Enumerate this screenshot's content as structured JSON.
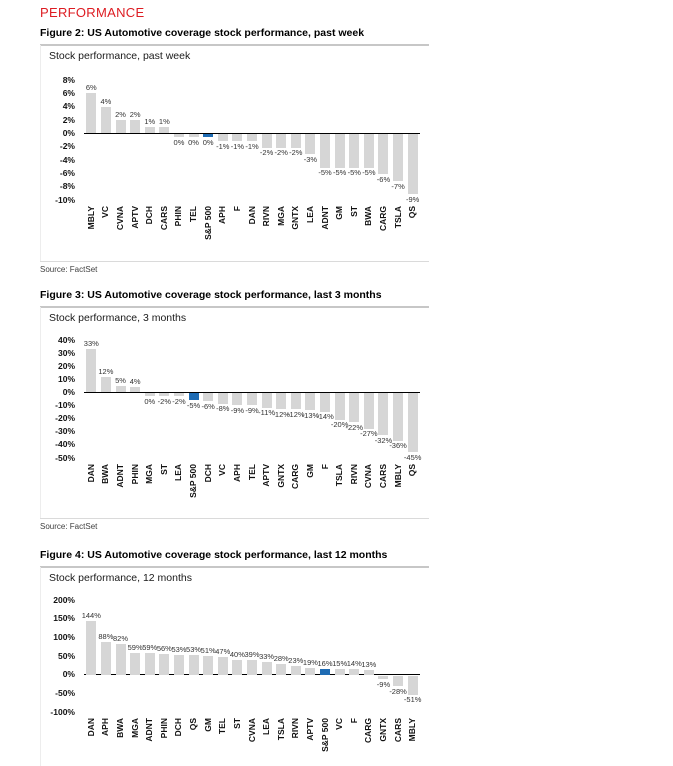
{
  "header": {
    "title": "PERFORMANCE"
  },
  "colors": {
    "accent_red": "#dd1c22",
    "bar_gray": "#d6d6d6",
    "bar_blue": "#1f6cb4",
    "axis_black": "#000000"
  },
  "figures": [
    {
      "caption": "Figure 2: US Automotive coverage stock performance, past week",
      "source": "Source: FactSet"
    },
    {
      "caption": "Figure 3: US Automotive coverage stock performance, last 3 months",
      "source": "Source: FactSet"
    },
    {
      "caption": "Figure 4: US Automotive coverage stock performance, last 12 months"
    }
  ],
  "chart_data": [
    {
      "type": "bar",
      "title": "Stock performance, past week",
      "unit": "%",
      "categories": [
        "MBLY",
        "VC",
        "CVNA",
        "APTV",
        "DCH",
        "CARS",
        "PHIN",
        "TEL",
        "S&P 500",
        "APH",
        "F",
        "DAN",
        "RIVN",
        "MGA",
        "GNTX",
        "LEA",
        "ADNT",
        "GM",
        "ST",
        "BWA",
        "CARG",
        "TSLA",
        "QS"
      ],
      "values": [
        6,
        4,
        2,
        2,
        1,
        1,
        0,
        0,
        0,
        -1,
        -1,
        -1,
        -2,
        -2,
        -2,
        -3,
        -5,
        -5,
        -5,
        -5,
        -6,
        -7,
        -9
      ],
      "ylim": [
        -10,
        8
      ],
      "ytick_step": 2,
      "highlight_category": "S&P 500",
      "xlabel": "",
      "ylabel": "",
      "grid": false,
      "legend": false
    },
    {
      "type": "bar",
      "title": "Stock performance, 3 months",
      "unit": "%",
      "categories": [
        "DAN",
        "BWA",
        "ADNT",
        "PHIN",
        "MGA",
        "ST",
        "LEA",
        "S&P 500",
        "DCH",
        "VC",
        "APH",
        "TEL",
        "APTV",
        "GNTX",
        "CARG",
        "GM",
        "F",
        "TSLA",
        "RIVN",
        "CVNA",
        "CARS",
        "MBLY",
        "QS"
      ],
      "values": [
        33,
        12,
        5,
        4,
        0,
        -2,
        -2,
        -5,
        -6,
        -8,
        -9,
        -9,
        -11,
        -12,
        -12,
        -13,
        -14,
        -20,
        -22,
        -27,
        -32,
        -36,
        -45
      ],
      "ylim": [
        -50,
        40
      ],
      "ytick_step": 10,
      "highlight_category": "S&P 500",
      "xlabel": "",
      "ylabel": "",
      "grid": false,
      "legend": false
    },
    {
      "type": "bar",
      "title": "Stock performance, 12 months",
      "unit": "%",
      "categories": [
        "DAN",
        "APH",
        "BWA",
        "MGA",
        "ADNT",
        "PHIN",
        "DCH",
        "QS",
        "GM",
        "TEL",
        "ST",
        "CVNA",
        "LEA",
        "TSLA",
        "RIVN",
        "APTV",
        "S&P 500",
        "VC",
        "F",
        "CARG",
        "GNTX",
        "CARS",
        "MBLY"
      ],
      "values": [
        144,
        88,
        82,
        59,
        59,
        56,
        53,
        53,
        51,
        47,
        40,
        39,
        33,
        28,
        23,
        19,
        16,
        15,
        14,
        13,
        -9,
        -28,
        -51
      ],
      "ylim": [
        -100,
        200
      ],
      "ytick_step": 50,
      "highlight_category": "S&P 500",
      "xlabel": "",
      "ylabel": "",
      "grid": false,
      "legend": false
    }
  ]
}
